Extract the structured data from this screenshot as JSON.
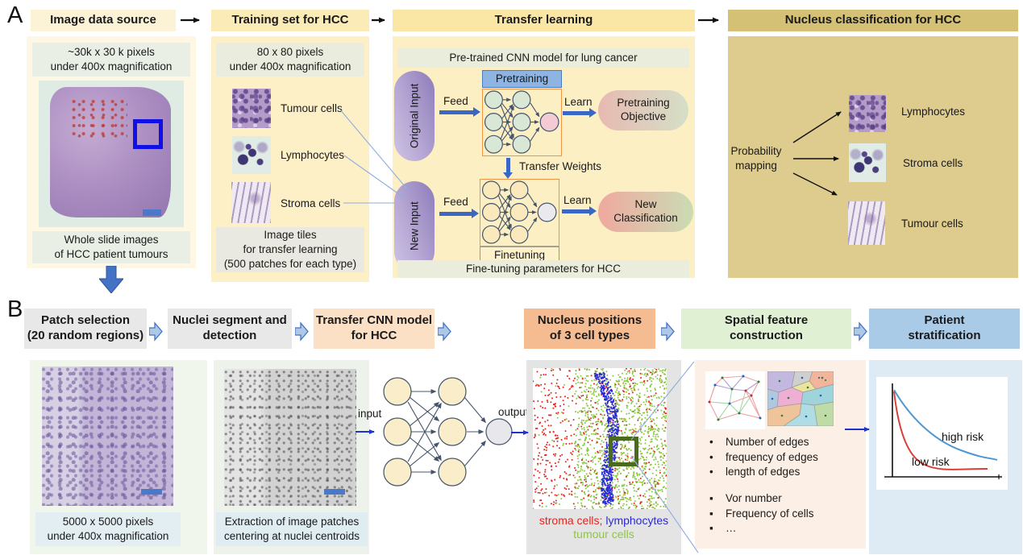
{
  "colors": {
    "legend_stroma": "#e8231b",
    "legend_lymph": "#2a2ad4",
    "legend_tumour": "#8cc63f",
    "risk_high": "#4d97d4",
    "risk_low": "#d8413a",
    "arrow_blue": "#3a66c6"
  },
  "panelA": {
    "label": "A",
    "headers": [
      "Image data source",
      "Training set for HCC",
      "Transfer learning",
      "Nucleus classification for HCC"
    ],
    "image_source": {
      "top_caption": "~30k x 30 k pixels\nunder 400x magnification",
      "bottom_caption": "Whole slide images\nof HCC patient tumours"
    },
    "training_set": {
      "top_caption": "80 x 80 pixels\nunder 400x magnification",
      "tiles": [
        "Tumour cells",
        "Lymphocytes",
        "Stroma cells"
      ],
      "bottom_caption": "Image tiles\nfor transfer learning\n(500 patches for each type)"
    },
    "transfer": {
      "strip_top": "Pre-trained CNN model for lung cancer",
      "pretraining": "Pretraining",
      "original_input": "Original Input",
      "feed": "Feed",
      "learn": "Learn",
      "objective": "Pretraining\nObjective",
      "transfer_weights": "Transfer Weights",
      "new_input": "New Input",
      "new_classification": "New\nClassification",
      "finetuning": "Finetuning",
      "strip_bottom": "Fine-tuning parameters for HCC"
    },
    "classification": {
      "prob_mapping": "Probability\nmapping",
      "labels": [
        "Lymphocytes",
        "Stroma cells",
        "Tumour cells"
      ]
    }
  },
  "panelB": {
    "label": "B",
    "headers": [
      "Patch selection\n(20 random regions)",
      "Nuclei segment and\ndetection",
      "Transfer CNN model\nfor HCC",
      "Nucleus positions\nof 3 cell types",
      "Spatial feature\nconstruction",
      "Patient\nstratification"
    ],
    "patch_selection": {
      "caption": "5000 x 5000 pixels\nunder 400x magnification"
    },
    "nuclei_segment": {
      "caption": "Extraction of image patches\ncentering at nuclei centroids"
    },
    "cnn": {
      "input_label": "input",
      "output_label": "output"
    },
    "positions": {
      "legend_stroma": "stroma cells;",
      "legend_lymph": "lymphocytes",
      "legend_tumour": "tumour cells"
    },
    "spatial": {
      "round_bullets": [
        "Number of edges",
        "frequency of edges",
        "length of edges"
      ],
      "square_bullets": [
        "Vor number",
        "Frequency of cells",
        "…"
      ]
    },
    "stratification": {
      "high_label": "high risk",
      "low_label": "low risk"
    }
  }
}
